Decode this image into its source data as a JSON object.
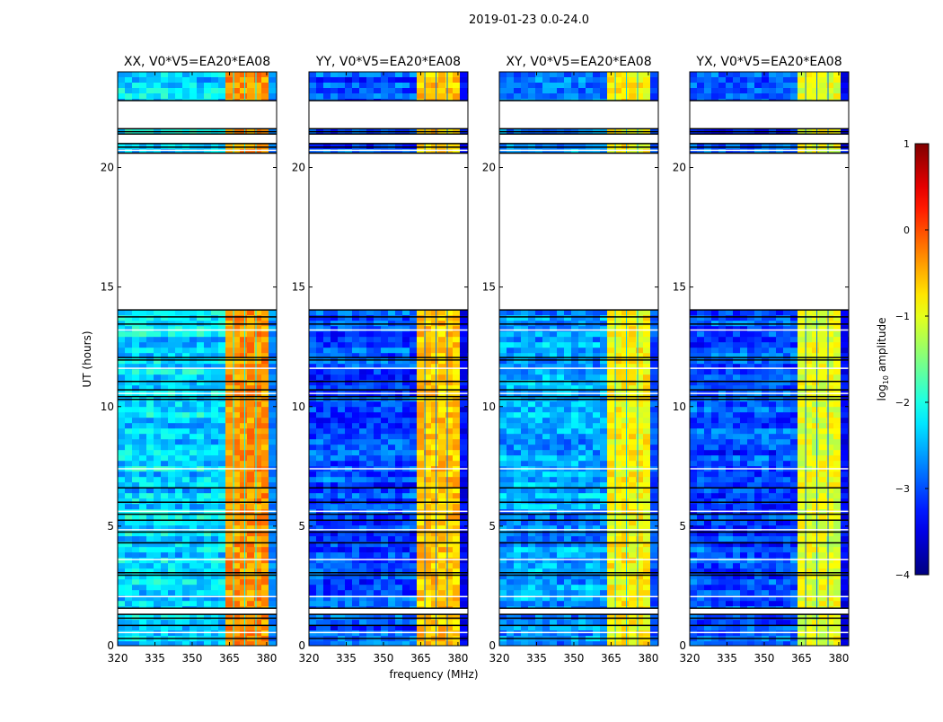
{
  "chart_data": {
    "type": "heatmap",
    "title": "2019-01-23 0.0-24.0",
    "xlabel": "frequency (MHz)",
    "ylabel": "UT (hours)",
    "xlim": [
      320,
      384
    ],
    "ylim": [
      0,
      24
    ],
    "xticks": [
      320,
      335,
      350,
      365,
      380
    ],
    "yticks": [
      0,
      5,
      10,
      15,
      20
    ],
    "data_blocks_hours": [
      [
        0,
        1.31
      ],
      [
        1.57,
        14.04
      ],
      [
        20.6,
        21.0
      ],
      [
        21.4,
        21.62
      ],
      [
        22.8,
        24
      ]
    ],
    "flagged_lines_hours": [
      0.3,
      0.55,
      0.85,
      1.15,
      2.05,
      2.95,
      3.05,
      3.6,
      4.3,
      4.75,
      4.85,
      5.25,
      5.5,
      5.62,
      6.0,
      6.6,
      7.4,
      10.3,
      10.42,
      10.55,
      10.7,
      11.05,
      11.6,
      11.95,
      12.05,
      13.2,
      13.45,
      13.75,
      20.72,
      20.85,
      21.5
    ],
    "rfi_bands_mhz": [
      [
        363.2,
        366.5
      ],
      [
        366.8,
        371.0
      ],
      [
        371.3,
        375.5
      ],
      [
        375.8,
        380.2
      ]
    ],
    "panels": [
      {
        "title": "XX, V0*V5=EA20*EA08",
        "background_log_amp": -2.3,
        "band_log_amp": -0.35
      },
      {
        "title": "YY, V0*V5=EA20*EA08",
        "background_log_amp": -3.0,
        "band_log_amp": -0.6
      },
      {
        "title": "XY, V0*V5=EA20*EA08",
        "background_log_amp": -2.6,
        "band_log_amp": -0.85
      },
      {
        "title": "YX, V0*V5=EA20*EA08",
        "background_log_amp": -3.0,
        "band_log_amp": -1.0
      }
    ],
    "colorbar": {
      "label": "log10 amplitude",
      "range": [
        -4,
        1
      ],
      "ticks": [
        -4,
        -3,
        -2,
        -1,
        0,
        1
      ],
      "colormap": "jet"
    }
  }
}
